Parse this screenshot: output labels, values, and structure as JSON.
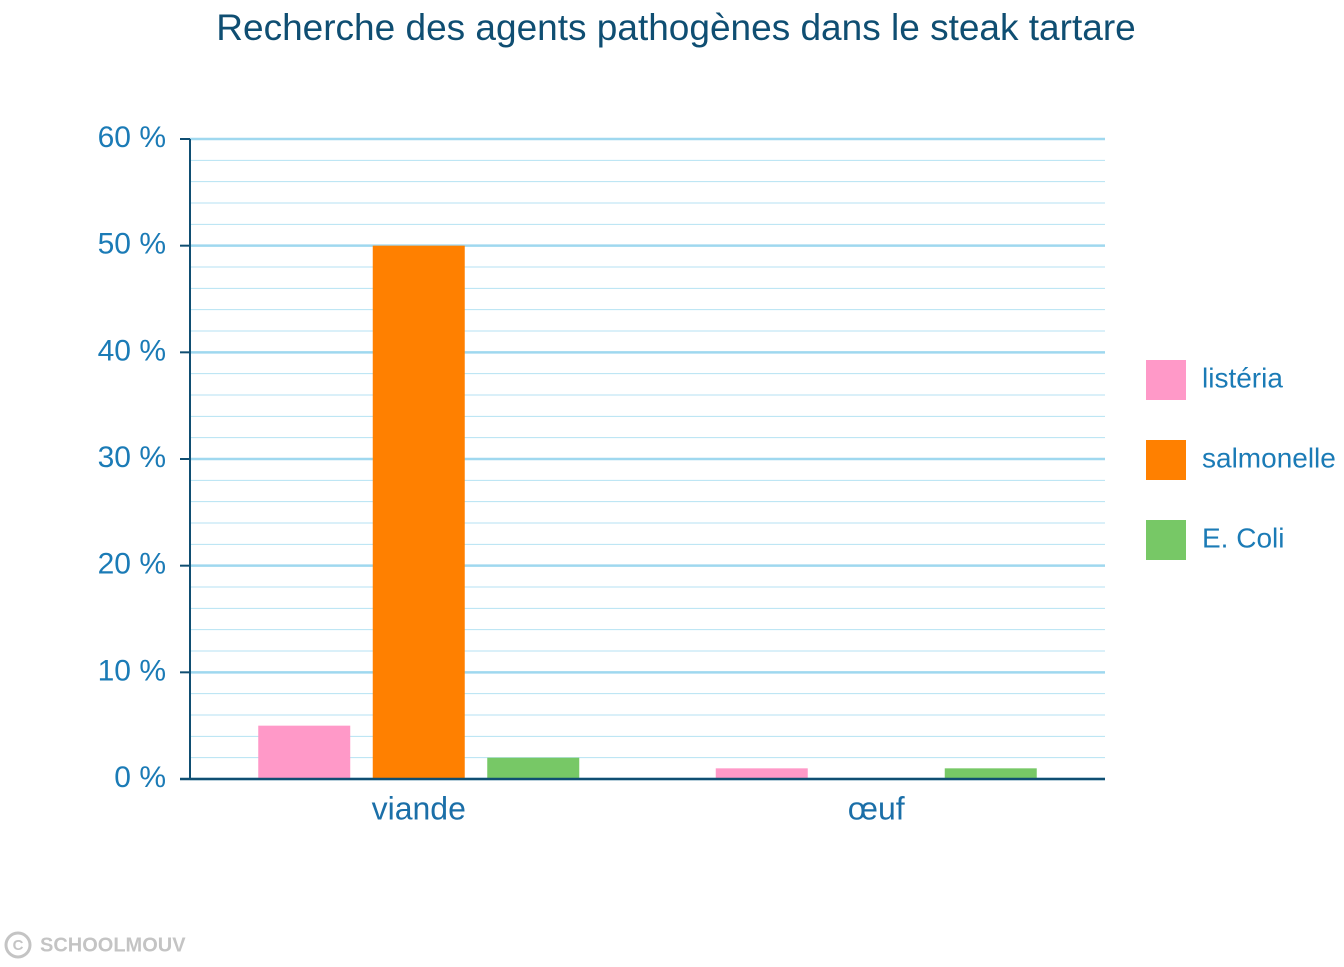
{
  "chart_data": {
    "type": "bar",
    "title": "Recherche des agents pathogènes dans le steak tartare",
    "categories": [
      "viande",
      "œuf"
    ],
    "series": [
      {
        "name": "listéria",
        "color": "#ff99c8",
        "values": [
          5,
          1
        ]
      },
      {
        "name": "salmonelle",
        "color": "#ff8000",
        "values": [
          50,
          0
        ]
      },
      {
        "name": "E. Coli",
        "color": "#77c866",
        "values": [
          2,
          1
        ]
      }
    ],
    "ylim": [
      0,
      60
    ],
    "yticks": [
      {
        "value": 0,
        "label": "0 %"
      },
      {
        "value": 10,
        "label": "10 %"
      },
      {
        "value": 20,
        "label": "20 %"
      },
      {
        "value": 30,
        "label": "30 %"
      },
      {
        "value": 40,
        "label": "40 %"
      },
      {
        "value": 50,
        "label": "50 %"
      },
      {
        "value": 60,
        "label": "60 %"
      }
    ],
    "grid": true,
    "legend": "right",
    "watermark": "SCHOOLMOUV"
  }
}
